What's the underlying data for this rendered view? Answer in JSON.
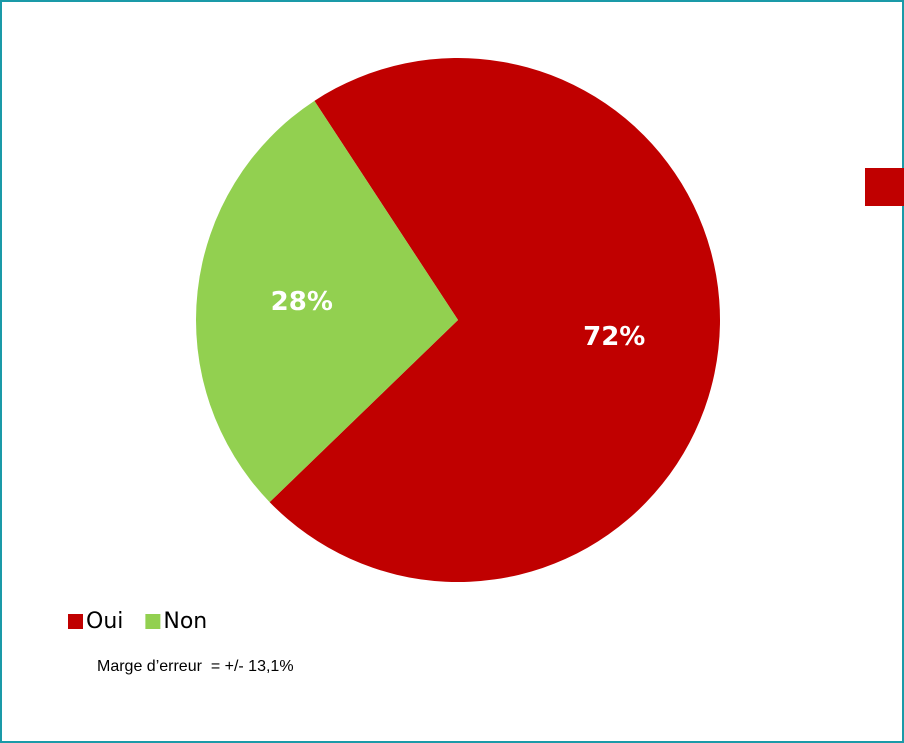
{
  "chart_data": {
    "type": "pie",
    "categories": [
      "Oui",
      "Non"
    ],
    "values": [
      72,
      28
    ],
    "value_labels": [
      "72%",
      "28%"
    ],
    "colors": [
      "#c00000",
      "#92d050"
    ],
    "legend": "bottom-left",
    "annotation": "Marge d’erreur  = +/- 13,1%"
  }
}
